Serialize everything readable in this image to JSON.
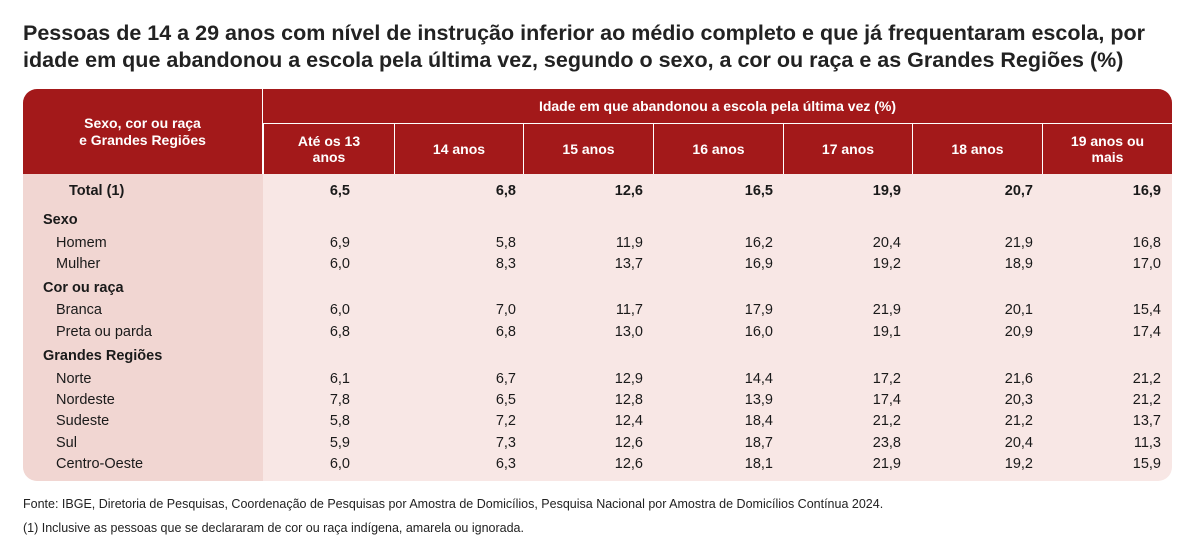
{
  "title": {
    "line1": "Pessoas de 14 a 29 anos com nível de instrução inferior ao médio completo e que já frequentaram escola, por",
    "line2": "idade em que abandonou a escola pela última vez, segundo o sexo, a cor ou raça e as Grandes Regiões (%)"
  },
  "header": {
    "row_header_line1": "Sexo, cor ou raça",
    "row_header_line2": "e Grandes Regiões",
    "group": "Idade em que abandonou a escola pela última vez (%)",
    "columns": [
      {
        "line1": "Até os 13",
        "line2": "anos"
      },
      {
        "line1": "14 anos",
        "line2": ""
      },
      {
        "line1": "15 anos",
        "line2": ""
      },
      {
        "line1": "16 anos",
        "line2": ""
      },
      {
        "line1": "17 anos",
        "line2": ""
      },
      {
        "line1": "18 anos",
        "line2": ""
      },
      {
        "line1": "19 anos ou",
        "line2": "mais"
      }
    ]
  },
  "rows": [
    {
      "label": "Total (1)",
      "kind": "total",
      "values": [
        "6,5",
        "6,8",
        "12,6",
        "16,5",
        "19,9",
        "20,7",
        "16,9"
      ]
    },
    {
      "label": "Sexo",
      "kind": "section",
      "values": []
    },
    {
      "label": "Homem",
      "kind": "item",
      "values": [
        "6,9",
        "5,8",
        "11,9",
        "16,2",
        "20,4",
        "21,9",
        "16,8"
      ]
    },
    {
      "label": "Mulher",
      "kind": "item",
      "values": [
        "6,0",
        "8,3",
        "13,7",
        "16,9",
        "19,2",
        "18,9",
        "17,0"
      ]
    },
    {
      "label": "Cor ou raça",
      "kind": "section",
      "values": []
    },
    {
      "label": "Branca",
      "kind": "item",
      "values": [
        "6,0",
        "7,0",
        "11,7",
        "17,9",
        "21,9",
        "20,1",
        "15,4"
      ]
    },
    {
      "label": "Preta ou parda",
      "kind": "item",
      "values": [
        "6,8",
        "6,8",
        "13,0",
        "16,0",
        "19,1",
        "20,9",
        "17,4"
      ]
    },
    {
      "label": "Grandes Regiões",
      "kind": "section",
      "values": []
    },
    {
      "label": "Norte",
      "kind": "item",
      "values": [
        "6,1",
        "6,7",
        "12,9",
        "14,4",
        "17,2",
        "21,6",
        "21,2"
      ]
    },
    {
      "label": "Nordeste",
      "kind": "item",
      "values": [
        "7,8",
        "6,5",
        "12,8",
        "13,9",
        "17,4",
        "20,3",
        "21,2"
      ]
    },
    {
      "label": "Sudeste",
      "kind": "item",
      "values": [
        "5,8",
        "7,2",
        "12,4",
        "18,4",
        "21,2",
        "21,2",
        "13,7"
      ]
    },
    {
      "label": "Sul",
      "kind": "item",
      "values": [
        "5,9",
        "7,3",
        "12,6",
        "18,7",
        "23,8",
        "20,4",
        "11,3"
      ]
    },
    {
      "label": "Centro-Oeste",
      "kind": "item",
      "values": [
        "6,0",
        "6,3",
        "12,6",
        "18,1",
        "21,9",
        "19,2",
        "15,9"
      ]
    }
  ],
  "footer": {
    "source": "Fonte: IBGE, Diretoria de Pesquisas, Coordenação de Pesquisas por Amostra de Domicílios, Pesquisa Nacional por Amostra de Domicílios Contínua 2024.",
    "note": "(1) Inclusive as pessoas que se declararam de cor ou raça indígena, amarela ou ignorada."
  },
  "colors": {
    "header_bg": "#a3191a",
    "body_bg": "#f8e7e5",
    "row_header_bg": "#f1d6d2"
  }
}
